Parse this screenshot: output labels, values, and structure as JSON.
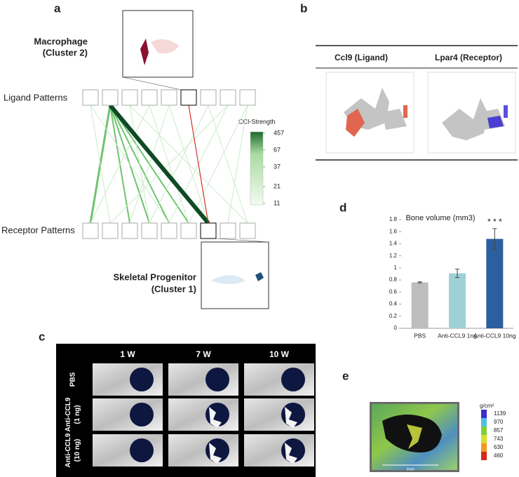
{
  "panel_labels": [
    "a",
    "b",
    "c",
    "d",
    "e"
  ],
  "panel_a": {
    "macrophage_label": [
      "Macrophage",
      "(Cluster 2)"
    ],
    "ligand_label": "Ligand Patterns",
    "receptor_label": "Receptor Patterns",
    "skeletal_label": [
      "Skeletal Progenitor",
      "(Cluster 1)"
    ],
    "legend_title": "CCI-Strength",
    "legend_ticks": [
      457,
      67,
      37,
      21,
      11
    ]
  },
  "panel_b": {
    "headers": [
      "Ccl9 (Ligand)",
      "Lpar4 (Receptor)"
    ]
  },
  "panel_c": {
    "columns": [
      "1 W",
      "7 W",
      "10 W"
    ],
    "rows": [
      [
        "PBS"
      ],
      [
        "Anti-CCL9",
        "(1 ng)"
      ],
      [
        "Anti-CCL9",
        "(10 ng)"
      ]
    ]
  },
  "chart_data": {
    "type": "bar",
    "title": "Bone volume (mm3)",
    "categories": [
      "PBS",
      "Anti-CCL9 1ng",
      "Anti-CCL9 10ng"
    ],
    "values": [
      0.76,
      0.91,
      1.48
    ],
    "errors": [
      0.01,
      0.07,
      0.17
    ],
    "colors": [
      "#bdbdbd",
      "#9fd0d6",
      "#2b5f9f"
    ],
    "ylim": [
      0,
      1.8
    ],
    "yticks": [
      0,
      0.2,
      0.4,
      0.6,
      0.8,
      1,
      1.2,
      1.4,
      1.6,
      1.8
    ],
    "annotation": "* * *"
  },
  "panel_e": {
    "unit": "g/cm²",
    "scale_values": [
      1139,
      970,
      857,
      743,
      630,
      460
    ],
    "scale_colors": [
      "#3b2fc9",
      "#4fc0e0",
      "#7fcf3a",
      "#d8df2a",
      "#f09a20",
      "#d42a1a"
    ],
    "scale_bar_label": "3mm"
  }
}
